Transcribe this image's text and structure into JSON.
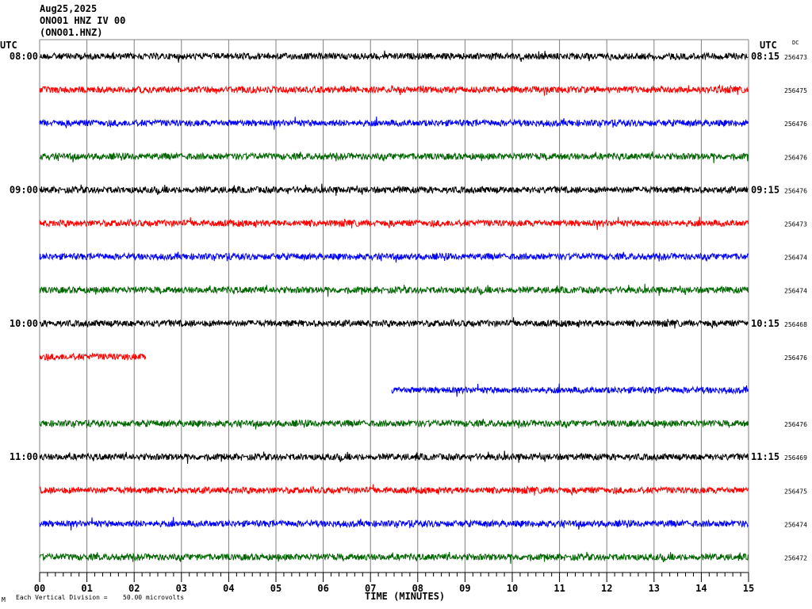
{
  "header": {
    "date": "Aug25,2025",
    "station_line": "ONO01 HNZ IV 00",
    "channel_line": "(ONO01.HNZ)"
  },
  "left_tz": "UTC",
  "right_tz": "UTC",
  "dc_label": "DC",
  "footer": {
    "mark": "M",
    "division_text": "Each Vertical Division =",
    "division_value": "50.00 microvolts"
  },
  "colors": {
    "trace_cycle": [
      "#000000",
      "#ff0000",
      "#0000ff",
      "#006400"
    ],
    "grid": "#808080",
    "axis": "#000000"
  },
  "chart_data": {
    "type": "line",
    "title": "ONO01 HNZ IV 00",
    "xlabel": "TIME (MINUTES)",
    "x_ticks": [
      "00",
      "01",
      "02",
      "03",
      "04",
      "05",
      "06",
      "07",
      "08",
      "09",
      "10",
      "11",
      "12",
      "13",
      "14",
      "15"
    ],
    "xlim": [
      0,
      15
    ],
    "rows": [
      {
        "left_label": "08:00",
        "right_label": "08:15",
        "dc": "256473",
        "start_min": 0,
        "end_min": 15
      },
      {
        "left_label": "",
        "right_label": "",
        "dc": "256475",
        "start_min": 0,
        "end_min": 15
      },
      {
        "left_label": "",
        "right_label": "",
        "dc": "256476",
        "start_min": 0,
        "end_min": 15
      },
      {
        "left_label": "",
        "right_label": "",
        "dc": "256476",
        "start_min": 0,
        "end_min": 15
      },
      {
        "left_label": "09:00",
        "right_label": "09:15",
        "dc": "256476",
        "start_min": 0,
        "end_min": 15
      },
      {
        "left_label": "",
        "right_label": "",
        "dc": "256473",
        "start_min": 0,
        "end_min": 15
      },
      {
        "left_label": "",
        "right_label": "",
        "dc": "256474",
        "start_min": 0,
        "end_min": 15
      },
      {
        "left_label": "",
        "right_label": "",
        "dc": "256474",
        "start_min": 0,
        "end_min": 15
      },
      {
        "left_label": "10:00",
        "right_label": "10:15",
        "dc": "256468",
        "start_min": 0,
        "end_min": 15
      },
      {
        "left_label": "",
        "right_label": "",
        "dc": "256476",
        "start_min": 0,
        "end_min": 2.25
      },
      {
        "left_label": "",
        "right_label": "",
        "dc": "",
        "start_min": 7.45,
        "end_min": 15
      },
      {
        "left_label": "",
        "right_label": "",
        "dc": "256476",
        "start_min": 0,
        "end_min": 15
      },
      {
        "left_label": "11:00",
        "right_label": "11:15",
        "dc": "256469",
        "start_min": 0,
        "end_min": 15
      },
      {
        "left_label": "",
        "right_label": "",
        "dc": "256475",
        "start_min": 0,
        "end_min": 15
      },
      {
        "left_label": "",
        "right_label": "",
        "dc": "256474",
        "start_min": 0,
        "end_min": 15
      },
      {
        "left_label": "",
        "right_label": "",
        "dc": "256472",
        "start_min": 0,
        "end_min": 15
      }
    ]
  }
}
